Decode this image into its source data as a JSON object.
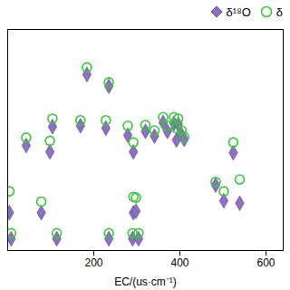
{
  "chart_data": {
    "type": "scatter",
    "x_label": "EC/(us·cm⁻¹)",
    "x": [
      184,
      235,
      104,
      169,
      43,
      98,
      228,
      279,
      292,
      320,
      341,
      361,
      371,
      386,
      396,
      392,
      404,
      410,
      524,
      539,
      483,
      4,
      78,
      292,
      298,
      290,
      304,
      114,
      8,
      235,
      502
    ],
    "series": [
      {
        "name": "δ¹⁸O",
        "color": "#8e6fc1",
        "marker": "diamond",
        "values": [
          22.3,
          20.8,
          15.7,
          15.8,
          13.3,
          12.5,
          15.5,
          14.6,
          12.5,
          15.1,
          14.5,
          16.2,
          15.1,
          16.1,
          16.0,
          14.0,
          14.7,
          14.1,
          12.4,
          6.0,
          8.3,
          4.8,
          4.8,
          4.8,
          5.0,
          1.5,
          1.5,
          1.5,
          1.5,
          1.5,
          6.3
        ]
      },
      {
        "name": "δ",
        "color": "#33cc33",
        "marker": "circle",
        "values": [
          23.2,
          21.3,
          16.7,
          16.5,
          14.3,
          13.9,
          16.5,
          15.8,
          13.7,
          15.9,
          15.2,
          16.9,
          15.8,
          16.9,
          16.7,
          15.5,
          15.2,
          14.4,
          13.7,
          9.0,
          8.7,
          7.5,
          6.2,
          6.8,
          6.7,
          2.2,
          2.2,
          2.2,
          2.2,
          2.2,
          7.5
        ]
      }
    ],
    "xlim": [
      0,
      640
    ],
    "xticks": [
      200,
      400,
      600
    ],
    "ylim": [
      0,
      28
    ],
    "tick_labels": "x",
    "legend": "top-right",
    "grid": false
  }
}
